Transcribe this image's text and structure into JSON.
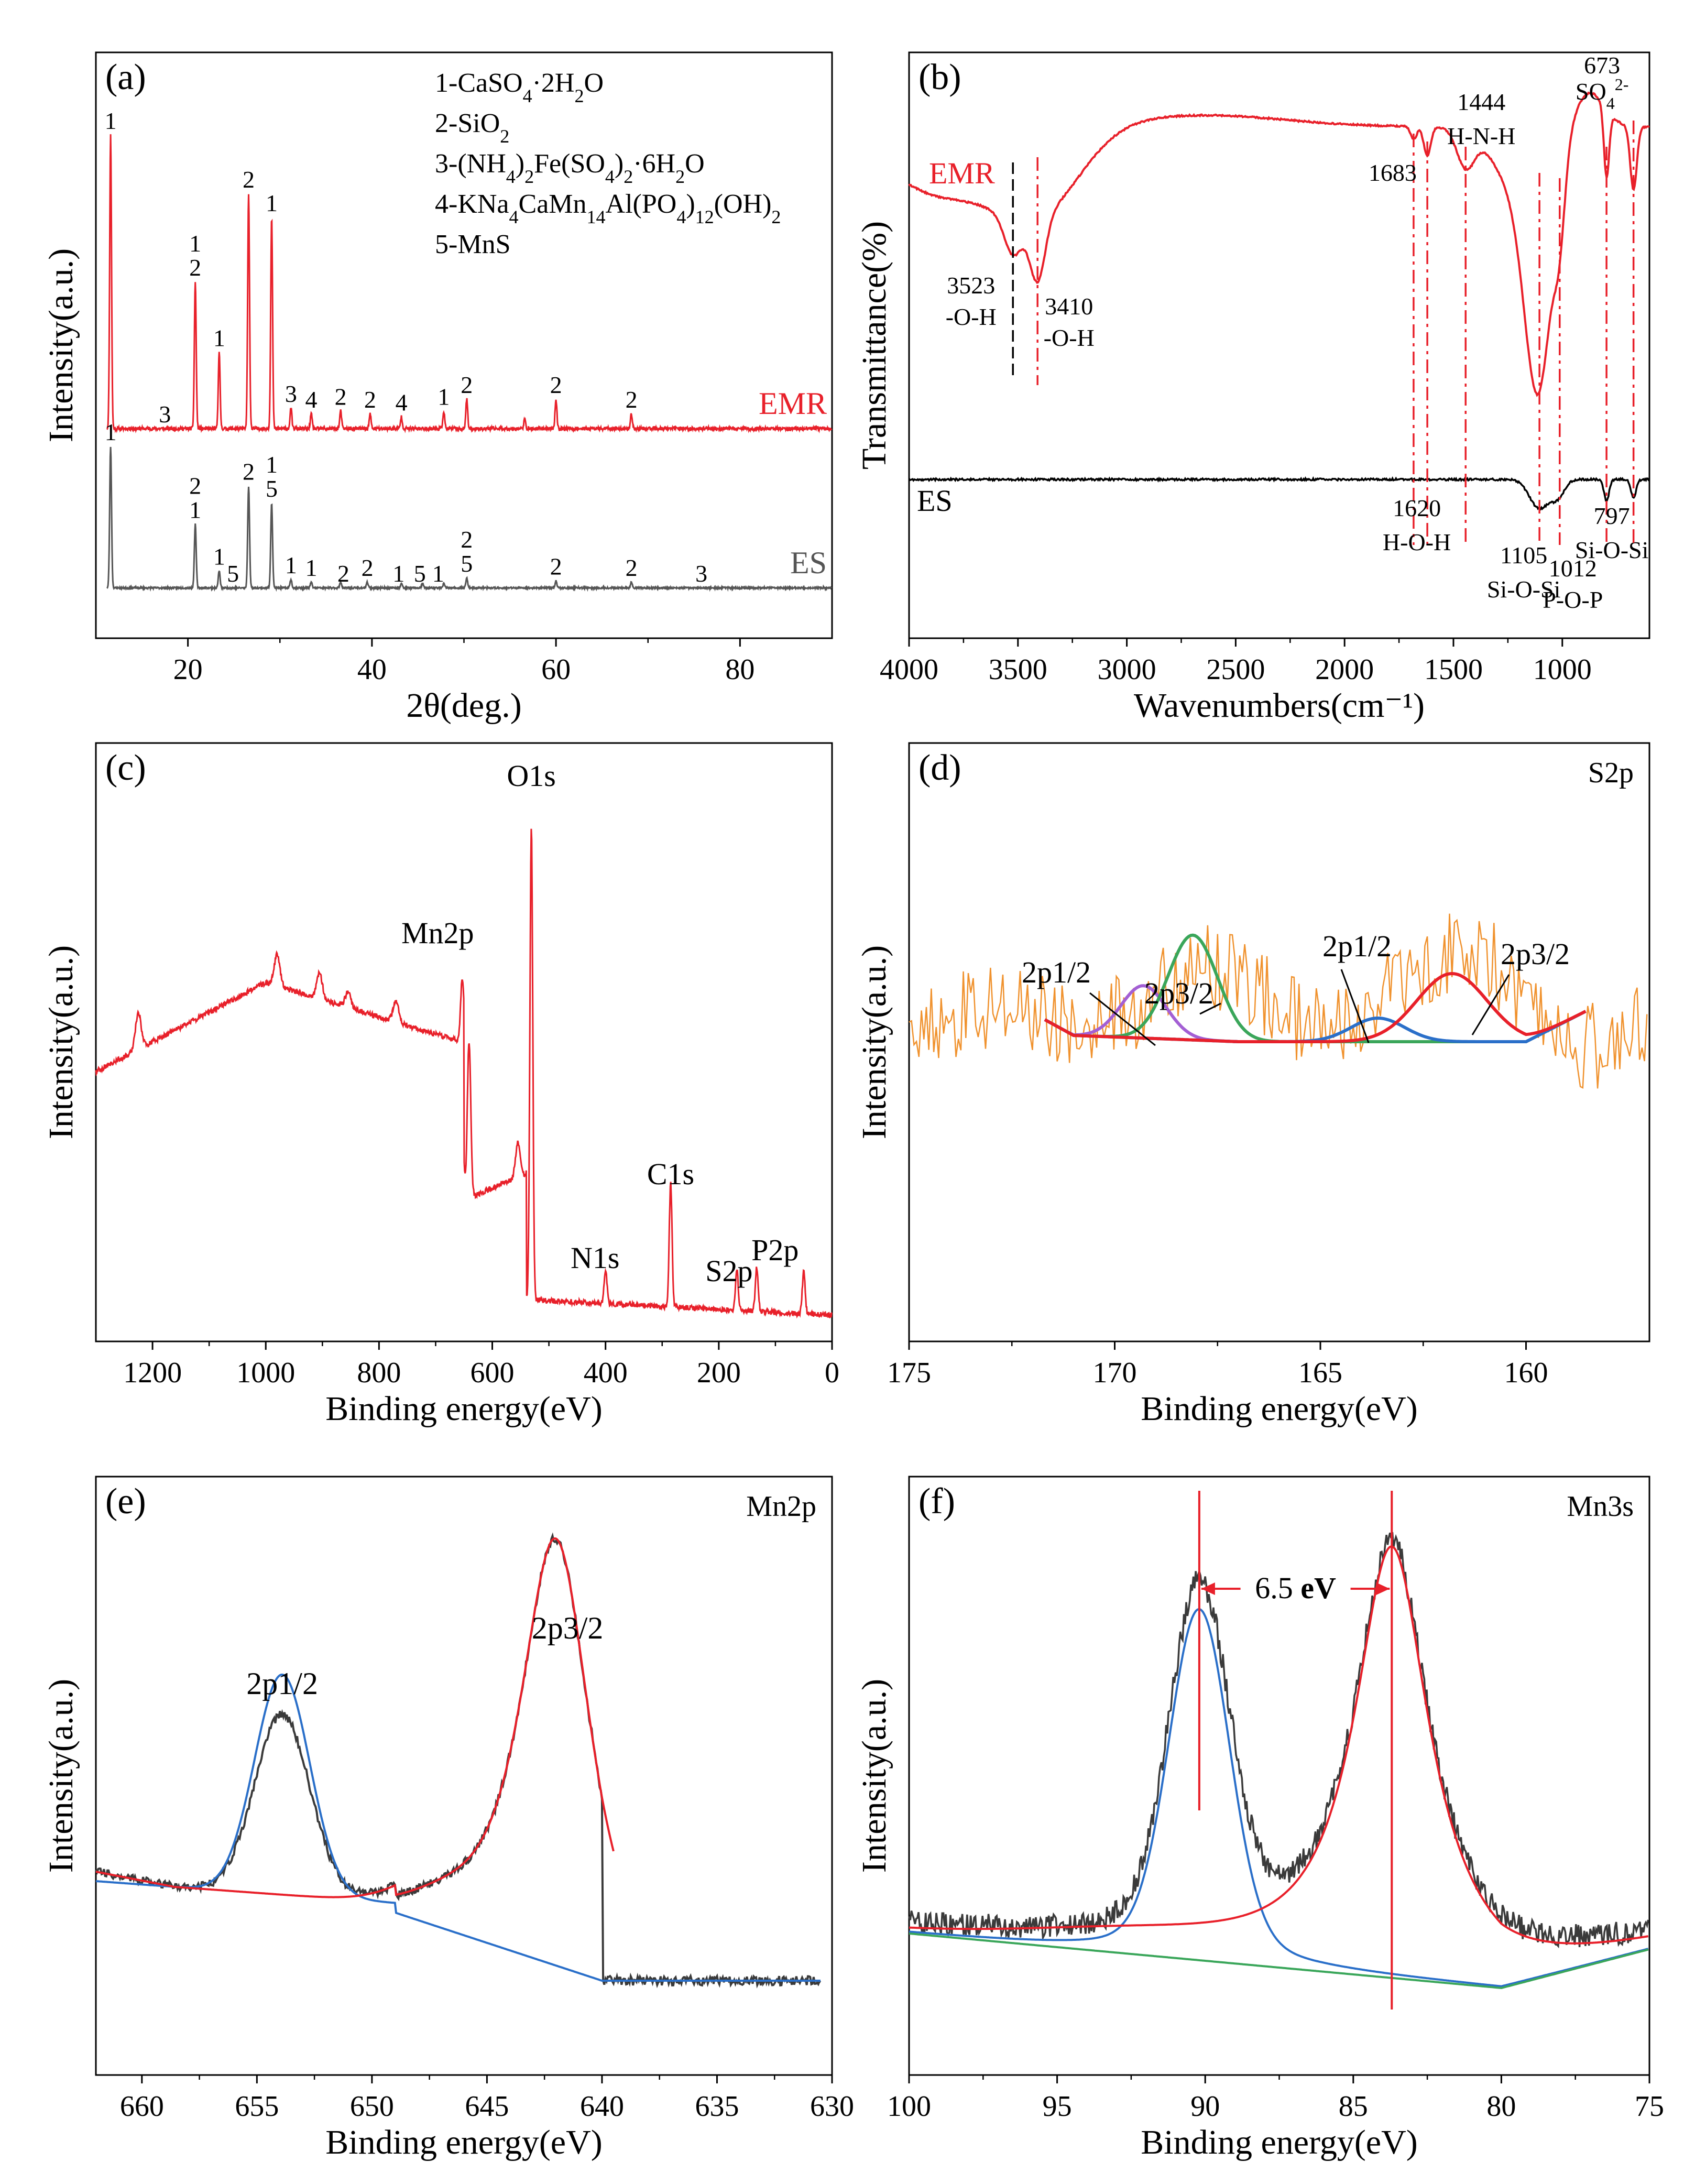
{
  "chart_data": [
    {
      "id": "a",
      "type": "line",
      "panel_label": "(a)",
      "xlabel": "2θ(deg.)",
      "ylabel": "Intensity(a.u.)",
      "xlim": [
        10,
        90
      ],
      "xticks": [
        20,
        40,
        60,
        80
      ],
      "legend": [
        "1-CaSO4·2H2O",
        "2-SiO2",
        "3-(NH4)2Fe(SO4)2·6H2O",
        "4-KNa4CaMn14Al(PO4)12(OH)2",
        "5-MnS"
      ],
      "series": [
        {
          "name": "EMR",
          "color": "#e8202a",
          "peaks": [
            [
              11.6,
              1.0
            ],
            [
              20.8,
              0.5
            ],
            [
              23.4,
              0.26
            ],
            [
              26.6,
              0.8
            ],
            [
              29.1,
              0.72
            ],
            [
              31.2,
              0.07
            ],
            [
              33.4,
              0.05
            ],
            [
              36.6,
              0.06
            ],
            [
              39.8,
              0.05
            ],
            [
              43.2,
              0.04
            ],
            [
              47.8,
              0.06
            ],
            [
              50.3,
              0.1
            ],
            [
              56.6,
              0.03
            ],
            [
              60.0,
              0.1
            ],
            [
              68.2,
              0.05
            ]
          ],
          "labels": [
            {
              "x": 11.6,
              "text": "1"
            },
            {
              "x": 17.5,
              "text": "3"
            },
            {
              "x": 20.8,
              "text": "2"
            },
            {
              "x": 20.8,
              "text": "1"
            },
            {
              "x": 23.4,
              "text": "1"
            },
            {
              "x": 26.6,
              "text": "2"
            },
            {
              "x": 29.1,
              "text": "1"
            },
            {
              "x": 31.2,
              "text": "3"
            },
            {
              "x": 33.4,
              "text": "4"
            },
            {
              "x": 36.6,
              "text": "2"
            },
            {
              "x": 39.8,
              "text": "2"
            },
            {
              "x": 43.2,
              "text": "4"
            },
            {
              "x": 47.8,
              "text": "1"
            },
            {
              "x": 50.3,
              "text": "2"
            },
            {
              "x": 60.0,
              "text": "2"
            },
            {
              "x": 68.2,
              "text": "2"
            }
          ]
        },
        {
          "name": "ES",
          "color": "#555555",
          "peaks": [
            [
              11.6,
              1.0
            ],
            [
              20.8,
              0.45
            ],
            [
              23.4,
              0.12
            ],
            [
              26.6,
              0.72
            ],
            [
              29.1,
              0.6
            ],
            [
              31.2,
              0.06
            ],
            [
              33.4,
              0.04
            ],
            [
              36.6,
              0.04
            ],
            [
              39.5,
              0.04
            ],
            [
              43.2,
              0.03
            ],
            [
              45.5,
              0.03
            ],
            [
              47.8,
              0.03
            ],
            [
              50.3,
              0.07
            ],
            [
              60.0,
              0.05
            ],
            [
              68.2,
              0.04
            ]
          ],
          "labels": [
            {
              "x": 11.6,
              "text": "1"
            },
            {
              "x": 20.8,
              "text": "1"
            },
            {
              "x": 20.8,
              "text": "2"
            },
            {
              "x": 23.4,
              "text": "1"
            },
            {
              "x": 24.9,
              "text": "5"
            },
            {
              "x": 26.6,
              "text": "2"
            },
            {
              "x": 29.1,
              "text": "5"
            },
            {
              "x": 29.1,
              "text": "1"
            },
            {
              "x": 31.2,
              "text": "1"
            },
            {
              "x": 33.4,
              "text": "1"
            },
            {
              "x": 36.9,
              "text": "2"
            },
            {
              "x": 39.5,
              "text": "2"
            },
            {
              "x": 42.9,
              "text": "1"
            },
            {
              "x": 45.2,
              "text": "5"
            },
            {
              "x": 47.2,
              "text": "1"
            },
            {
              "x": 50.3,
              "text": "5"
            },
            {
              "x": 50.3,
              "text": "2"
            },
            {
              "x": 60.0,
              "text": "2"
            },
            {
              "x": 68.2,
              "text": "2"
            },
            {
              "x": 75.8,
              "text": "3"
            }
          ]
        }
      ]
    },
    {
      "id": "b",
      "type": "line",
      "panel_label": "(b)",
      "xlabel": "Wavenumbers(cm⁻¹)",
      "ylabel": "Transmittance(%)",
      "xlim": [
        4000,
        600
      ],
      "xticks": [
        4000,
        3500,
        3000,
        2500,
        2000,
        1500,
        1000
      ],
      "series": [
        {
          "name": "EMR",
          "color": "#e8202a"
        },
        {
          "name": "ES",
          "color": "#000000"
        }
      ],
      "annotations": [
        {
          "x": 3523,
          "lines": [
            "3523",
            "-O-H"
          ],
          "color": "#000000"
        },
        {
          "x": 3410,
          "lines": [
            "3410",
            "-O-H"
          ],
          "color": "#e8202a"
        },
        {
          "x": 1683,
          "lines": [
            "1683"
          ],
          "color": "#e8202a"
        },
        {
          "x": 1620,
          "lines": [
            "1620",
            "H-O-H"
          ],
          "color": "#e8202a"
        },
        {
          "x": 1444,
          "lines": [
            "1444",
            "H-N-H"
          ],
          "color": "#e8202a"
        },
        {
          "x": 1105,
          "lines": [
            "1105",
            "Si-O-Si"
          ],
          "color": "#e8202a"
        },
        {
          "x": 1012,
          "lines": [
            "1012",
            "P-O-P"
          ],
          "color": "#e8202a"
        },
        {
          "x": 797,
          "lines": [
            "797",
            "Si-O-Si"
          ],
          "color": "#e8202a"
        },
        {
          "x": 673,
          "lines": [
            "673",
            "SO42-"
          ],
          "color": "#e8202a"
        }
      ]
    },
    {
      "id": "c",
      "type": "line",
      "panel_label": "(c)",
      "xlabel": "Binding energy(eV)",
      "ylabel": "Intensity(a.u.)",
      "xlim": [
        1300,
        0
      ],
      "xticks": [
        1200,
        1000,
        800,
        600,
        400,
        200,
        0
      ],
      "series": [
        {
          "name": "survey",
          "color": "#e8202a"
        }
      ],
      "annotations": [
        {
          "x": 531,
          "text": "O1s"
        },
        {
          "x": 641,
          "text": "Mn2p"
        },
        {
          "x": 285,
          "text": "C1s"
        },
        {
          "x": 400,
          "text": "N1s"
        },
        {
          "x": 168,
          "text": "S2p"
        },
        {
          "x": 133,
          "text": "P2p"
        }
      ]
    },
    {
      "id": "d",
      "type": "line",
      "panel_label": "(d)",
      "title": "S2p",
      "xlabel": "Binding energy(eV)",
      "ylabel": "Intensity(a.u.)",
      "xlim": [
        175,
        157
      ],
      "xticks": [
        175,
        170,
        165,
        160
      ],
      "series": [
        {
          "name": "raw",
          "color": "#f0922e"
        },
        {
          "name": "2p1/2 (169.3)",
          "color": "#a35fd4",
          "center": 169.3
        },
        {
          "name": "2p3/2 (168.1)",
          "color": "#3aa65a",
          "center": 168.1
        },
        {
          "name": "2p1/2 (163.6)",
          "color": "#2a6fc9",
          "center": 163.6
        },
        {
          "name": "2p3/2 (161.8)",
          "color": "#e8202a",
          "center": 161.8
        }
      ],
      "labels": [
        "2p1/2",
        "2p3/2",
        "2p1/2",
        "2p3/2"
      ]
    },
    {
      "id": "e",
      "type": "line",
      "panel_label": "(e)",
      "title": "Mn2p",
      "xlabel": "Binding energy(eV)",
      "ylabel": "Intensity(a.u.)",
      "xlim": [
        662,
        630
      ],
      "xticks": [
        660,
        655,
        650,
        645,
        640,
        635,
        630
      ],
      "series": [
        {
          "name": "raw",
          "color": "#3a3a3a"
        },
        {
          "name": "2p1/2 fit",
          "color": "#2a6fc9",
          "center": 653.9
        },
        {
          "name": "2p3/2 fit",
          "color": "#e8202a",
          "center": 642.0
        }
      ],
      "labels": [
        {
          "x": 653.9,
          "text": "2p1/2"
        },
        {
          "x": 641.5,
          "text": "2p3/2"
        }
      ]
    },
    {
      "id": "f",
      "type": "line",
      "panel_label": "(f)",
      "title": "Mn3s",
      "xlabel": "Binding energy(eV)",
      "ylabel": "Intensity(a.u.)",
      "xlim": [
        100,
        75
      ],
      "xticks": [
        100,
        95,
        90,
        85,
        80,
        75
      ],
      "series": [
        {
          "name": "raw",
          "color": "#3a3a3a"
        },
        {
          "name": "fit 90.2",
          "color": "#2a6fc9",
          "center": 90.2
        },
        {
          "name": "fit 83.7",
          "color": "#e8202a",
          "center": 83.7
        },
        {
          "name": "background",
          "color": "#3aa65a"
        }
      ],
      "splitting": {
        "from": 90.2,
        "to": 83.7,
        "text": "6.5 eV"
      }
    }
  ]
}
